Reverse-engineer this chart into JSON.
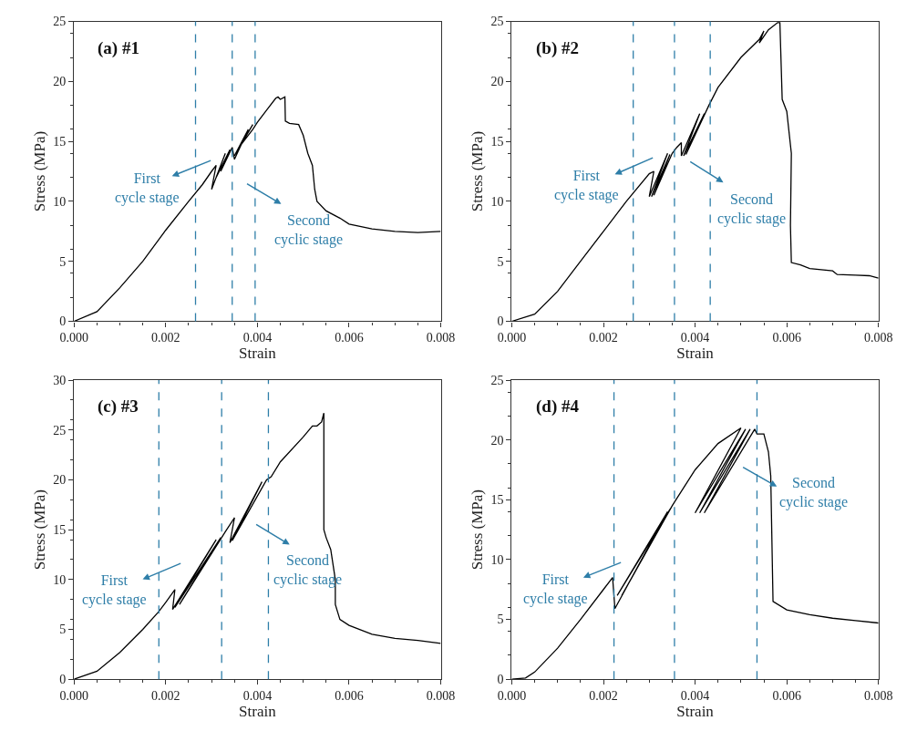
{
  "chart_data": [
    {
      "type": "line",
      "title": "(a) #1",
      "xlabel": "Strain",
      "ylabel": "Stress (MPa)",
      "xlim": [
        0,
        0.008
      ],
      "xticks": [
        {
          "value": 0,
          "label": "0.000"
        },
        {
          "value": 0.002,
          "label": "0.002"
        },
        {
          "value": 0.004,
          "label": "0.004"
        },
        {
          "value": 0.006,
          "label": "0.006"
        },
        {
          "value": 0.008,
          "label": "0.008"
        }
      ],
      "ylim": [
        0,
        25
      ],
      "yticks": [
        0,
        5,
        10,
        15,
        20,
        25
      ],
      "series": [
        {
          "color": "#000000",
          "x": [
            0,
            0.0005,
            0.001,
            0.0015,
            0.002,
            0.0025,
            0.0028,
            0.003,
            0.0031,
            0.003,
            0.0033,
            0.0031,
            0.0034,
            0.0032,
            0.00345,
            0.0035,
            0.0038,
            0.0035,
            0.0039,
            0.0036,
            0.0039,
            0.004,
            0.0042,
            0.0044,
            0.00445,
            0.0045,
            0.0046,
            0.00461,
            0.0047,
            0.0049,
            0.005,
            0.0051,
            0.0052,
            0.00525,
            0.0053,
            0.0055,
            0.0058,
            0.006,
            0.0065,
            0.007,
            0.0075,
            0.008
          ],
          "values": [
            0,
            0.8,
            2.8,
            5.0,
            7.6,
            10.0,
            11.4,
            12.5,
            13.0,
            11.0,
            14.0,
            12.0,
            14.3,
            12.5,
            14.5,
            13.5,
            16.0,
            13.8,
            16.4,
            14.5,
            16.0,
            16.6,
            17.6,
            18.6,
            18.7,
            18.5,
            18.7,
            16.7,
            16.5,
            16.4,
            15.5,
            14.0,
            13.0,
            11.0,
            10.0,
            9.2,
            8.6,
            8.1,
            7.7,
            7.5,
            7.4,
            7.5
          ]
        }
      ],
      "ref_lines": [
        {
          "axis": "x",
          "value": 0.00265,
          "color": "#2e7ea8",
          "line_style": "dashed"
        },
        {
          "axis": "x",
          "value": 0.00345,
          "color": "#2e7ea8",
          "line_style": "dashed"
        },
        {
          "axis": "x",
          "value": 0.00395,
          "color": "#2e7ea8",
          "line_style": "dashed"
        }
      ],
      "annotations": [
        "First\ncycle stage",
        "Second\ncyclic stage"
      ]
    },
    {
      "type": "line",
      "title": "(b) #2",
      "xlabel": "Strain",
      "ylabel": "Stress (MPa)",
      "xlim": [
        0,
        0.008
      ],
      "xticks": [
        {
          "value": 0,
          "label": "0.000"
        },
        {
          "value": 0.002,
          "label": "0.002"
        },
        {
          "value": 0.004,
          "label": "0.004"
        },
        {
          "value": 0.006,
          "label": "0.006"
        },
        {
          "value": 0.008,
          "label": "0.008"
        }
      ],
      "ylim": [
        0,
        25
      ],
      "yticks": [
        0,
        5,
        10,
        15,
        20,
        25
      ],
      "series": [
        {
          "color": "#000000",
          "x": [
            0,
            0.0005,
            0.001,
            0.0015,
            0.002,
            0.0025,
            0.003,
            0.0031,
            0.003,
            0.0034,
            0.00305,
            0.00345,
            0.0031,
            0.0035,
            0.0036,
            0.0037,
            0.0037,
            0.0041,
            0.00375,
            0.0042,
            0.0038,
            0.0043,
            0.0045,
            0.005,
            0.0054,
            0.0055,
            0.0054,
            0.0056,
            0.0058,
            0.00585,
            0.0059,
            0.006,
            0.0061,
            0.00608,
            0.0061,
            0.0063,
            0.0065,
            0.007,
            0.0071,
            0.0075,
            0.0078,
            0.008
          ],
          "values": [
            0,
            0.6,
            2.5,
            5.0,
            7.5,
            10.0,
            12.3,
            12.5,
            10.4,
            14.0,
            10.4,
            13.9,
            10.5,
            14.0,
            14.5,
            14.9,
            13.8,
            17.3,
            13.8,
            17.3,
            13.9,
            18.0,
            19.5,
            22.0,
            23.5,
            24.2,
            23.2,
            24.3,
            24.9,
            24.9,
            18.5,
            17.5,
            14.0,
            8.0,
            4.9,
            4.7,
            4.4,
            4.2,
            3.9,
            3.85,
            3.8,
            3.6
          ]
        }
      ],
      "ref_lines": [
        {
          "axis": "x",
          "value": 0.00265,
          "color": "#2e7ea8",
          "line_style": "dashed"
        },
        {
          "axis": "x",
          "value": 0.00355,
          "color": "#2e7ea8",
          "line_style": "dashed"
        },
        {
          "axis": "x",
          "value": 0.00433,
          "color": "#2e7ea8",
          "line_style": "dashed"
        }
      ],
      "annotations": [
        "First\ncycle stage",
        "Second\ncyclic stage"
      ]
    },
    {
      "type": "line",
      "title": "(c) #3",
      "xlabel": "Strain",
      "ylabel": "Stress (MPa)",
      "xlim": [
        0,
        0.008
      ],
      "xticks": [
        {
          "value": 0,
          "label": "0.000"
        },
        {
          "value": 0.002,
          "label": "0.002"
        },
        {
          "value": 0.004,
          "label": "0.004"
        },
        {
          "value": 0.006,
          "label": "0.006"
        },
        {
          "value": 0.008,
          "label": "0.008"
        }
      ],
      "ylim": [
        0,
        30
      ],
      "yticks": [
        0,
        5,
        10,
        15,
        20,
        25,
        30
      ],
      "series": [
        {
          "color": "#000000",
          "x": [
            0,
            0.0005,
            0.001,
            0.0015,
            0.00185,
            0.002,
            0.0022,
            0.00215,
            0.0031,
            0.0022,
            0.0032,
            0.0023,
            0.0033,
            0.0035,
            0.0034,
            0.0041,
            0.00345,
            0.0042,
            0.0043,
            0.0045,
            0.005,
            0.0052,
            0.0053,
            0.0054,
            0.00545,
            0.00545,
            0.0055,
            0.0056,
            0.0057,
            0.0057,
            0.0058,
            0.006,
            0.0065,
            0.007,
            0.0075,
            0.008
          ],
          "values": [
            0,
            0.8,
            2.7,
            5.0,
            6.8,
            7.7,
            9.0,
            7.0,
            14.0,
            7.2,
            14.2,
            7.5,
            14.8,
            16.2,
            13.7,
            19.8,
            13.9,
            20.0,
            20.3,
            21.8,
            24.3,
            25.4,
            25.4,
            25.8,
            26.7,
            15.0,
            14.2,
            13.0,
            10.0,
            7.5,
            6.0,
            5.4,
            4.5,
            4.1,
            3.9,
            3.6
          ]
        }
      ],
      "ref_lines": [
        {
          "axis": "x",
          "value": 0.00185,
          "color": "#2e7ea8",
          "line_style": "dashed"
        },
        {
          "axis": "x",
          "value": 0.00322,
          "color": "#2e7ea8",
          "line_style": "dashed"
        },
        {
          "axis": "x",
          "value": 0.00424,
          "color": "#2e7ea8",
          "line_style": "dashed"
        }
      ],
      "annotations": [
        "First\ncycle stage",
        "Second\ncyclic stage"
      ]
    },
    {
      "type": "line",
      "title": "(d) #4",
      "xlabel": "Strain",
      "ylabel": "Stress (MPa)",
      "xlim": [
        0,
        0.008
      ],
      "xticks": [
        {
          "value": 0,
          "label": "0.000"
        },
        {
          "value": 0.002,
          "label": "0.002"
        },
        {
          "value": 0.004,
          "label": "0.004"
        },
        {
          "value": 0.006,
          "label": "0.006"
        },
        {
          "value": 0.008,
          "label": "0.008"
        }
      ],
      "ylim": [
        0,
        25
      ],
      "yticks": [
        0,
        5,
        10,
        15,
        20,
        25
      ],
      "series": [
        {
          "color": "#000000",
          "x": [
            0,
            0.0003,
            0.0005,
            0.001,
            0.0015,
            0.002,
            0.0022,
            0.00225,
            0.0034,
            0.0023,
            0.00345,
            0.0024,
            0.0035,
            0.00355,
            0.004,
            0.0045,
            0.005,
            0.004,
            0.0051,
            0.0041,
            0.0052,
            0.0042,
            0.0053,
            0.00535,
            0.0055,
            0.0056,
            0.00565,
            0.0057,
            0.006,
            0.0065,
            0.007,
            0.0075,
            0.008
          ],
          "values": [
            0,
            0.1,
            0.6,
            2.6,
            5.0,
            7.5,
            8.5,
            5.9,
            14.0,
            7.0,
            14.2,
            7.0,
            14.5,
            14.8,
            17.5,
            19.7,
            21.0,
            13.9,
            20.9,
            13.9,
            20.9,
            13.9,
            20.9,
            20.5,
            20.5,
            19.0,
            17.0,
            6.5,
            5.8,
            5.4,
            5.1,
            4.9,
            4.7
          ]
        }
      ],
      "ref_lines": [
        {
          "axis": "x",
          "value": 0.00223,
          "color": "#2e7ea8",
          "line_style": "dashed"
        },
        {
          "axis": "x",
          "value": 0.00355,
          "color": "#2e7ea8",
          "line_style": "dashed"
        },
        {
          "axis": "x",
          "value": 0.00535,
          "color": "#2e7ea8",
          "line_style": "dashed"
        }
      ],
      "annotations": [
        "First\ncycle stage",
        "Second\ncyclic stage"
      ]
    }
  ]
}
